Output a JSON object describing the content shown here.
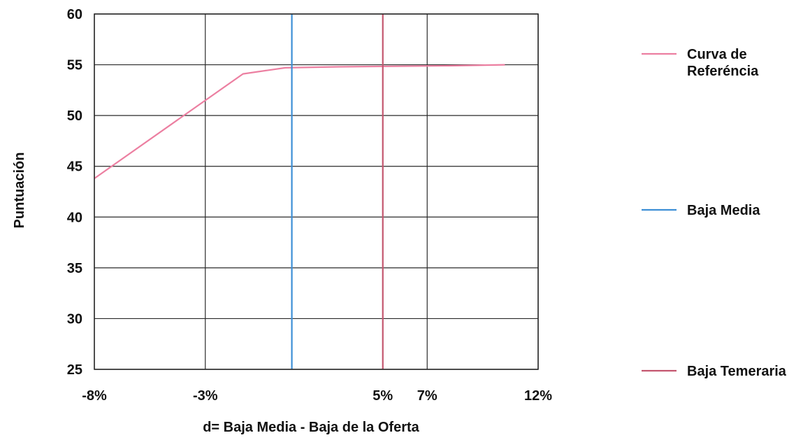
{
  "chart_data": {
    "type": "line",
    "xlabel": "d= Baja Media - Baja de la Oferta",
    "ylabel": "Puntuación",
    "xlim": [
      -8,
      12
    ],
    "ylim": [
      25,
      60
    ],
    "x_ticks": [
      {
        "value": -8,
        "label": "-8%"
      },
      {
        "value": -3,
        "label": "-3%"
      },
      {
        "value": 5,
        "label": "5%",
        "color": "#c4566f"
      },
      {
        "value": 7,
        "label": "7%"
      },
      {
        "value": 12,
        "label": "12%"
      }
    ],
    "y_ticks": [
      {
        "value": 60,
        "label": "60"
      },
      {
        "value": 55,
        "label": "55"
      },
      {
        "value": 50,
        "label": "50"
      },
      {
        "value": 45,
        "label": "45"
      },
      {
        "value": 40,
        "label": "40"
      },
      {
        "value": 35,
        "label": "35"
      },
      {
        "value": 30,
        "label": "30"
      },
      {
        "value": 25,
        "label": "25"
      }
    ],
    "grid": true,
    "legend_position": "right",
    "series": [
      {
        "name": "Curva de Referéncia",
        "legend_lines": [
          "Curva de",
          "Referéncia"
        ],
        "kind": "curve",
        "color": "#ec7fa1",
        "points": [
          [
            -8,
            43.8
          ],
          [
            -1.3,
            54.1
          ],
          [
            0.6,
            54.7
          ],
          [
            3,
            54.8
          ],
          [
            8,
            54.9
          ],
          [
            10.5,
            55
          ]
        ]
      },
      {
        "name": "Baja Media",
        "legend_lines": [
          "Baja Media"
        ],
        "kind": "vline",
        "color": "#3d8fd6",
        "x": 0.9
      },
      {
        "name": "Baja Temeraria",
        "legend_lines": [
          "Baja Temeraria"
        ],
        "kind": "vline",
        "color": "#c4566f",
        "x": 5
      }
    ]
  }
}
